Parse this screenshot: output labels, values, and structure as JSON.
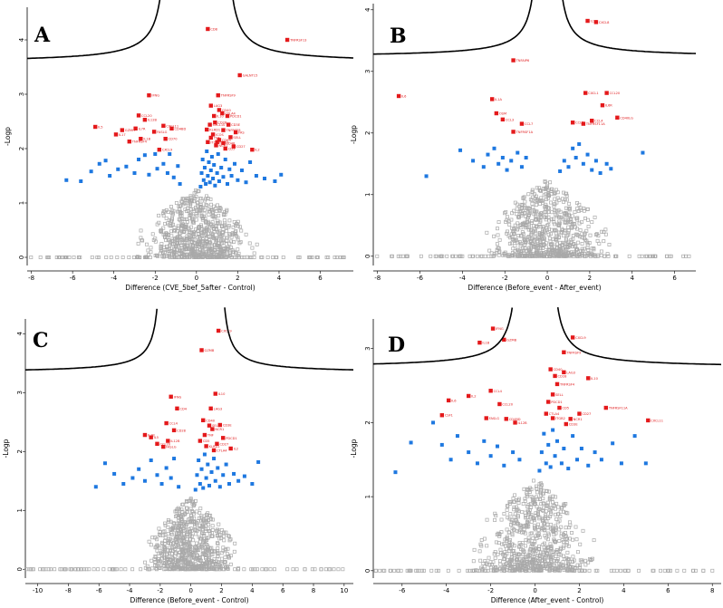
{
  "figure": {
    "colors": {
      "significant": "#e4191b",
      "trend": "#1e78e0",
      "nonsignificant": "#a9a9a9",
      "curve": "#000000"
    }
  },
  "chart_data": [
    {
      "panel": "A",
      "type": "scatter",
      "subtype": "volcano",
      "xlabel": "Difference (CVE_5bef_5after - Control)",
      "ylabel": "-Logp",
      "xlim": [
        -8.2,
        7.6
      ],
      "ylim": [
        -0.15,
        4.6
      ],
      "xticks": [
        -8,
        -6,
        -4,
        -2,
        0,
        2,
        4,
        6
      ],
      "yticks": [
        0,
        1,
        2,
        3,
        4
      ],
      "curve": {
        "c": 0.55,
        "k": 1.3,
        "yTop": 4.6
      },
      "background": {
        "n": 700,
        "seed": 11,
        "xSpread": 1.3,
        "ySpread": 0.55
      },
      "trend_points": [
        [
          -6.3,
          1.42
        ],
        [
          -5.6,
          1.4
        ],
        [
          -5.1,
          1.58
        ],
        [
          -4.7,
          1.72
        ],
        [
          -4.4,
          1.78
        ],
        [
          -4.2,
          1.5
        ],
        [
          -3.8,
          1.62
        ],
        [
          -3.4,
          1.67
        ],
        [
          -3.0,
          1.55
        ],
        [
          -2.8,
          1.8
        ],
        [
          -2.5,
          1.88
        ],
        [
          -2.3,
          1.52
        ],
        [
          -2.0,
          1.9
        ],
        [
          -1.9,
          1.63
        ],
        [
          -1.6,
          1.72
        ],
        [
          -1.4,
          1.55
        ],
        [
          -1.3,
          1.9
        ],
        [
          -1.1,
          1.47
        ],
        [
          -0.9,
          1.68
        ],
        [
          -0.8,
          1.35
        ],
        [
          0.2,
          1.3
        ],
        [
          0.25,
          1.55
        ],
        [
          0.3,
          1.8
        ],
        [
          0.35,
          1.42
        ],
        [
          0.4,
          1.65
        ],
        [
          0.45,
          1.35
        ],
        [
          0.5,
          1.95
        ],
        [
          0.55,
          1.5
        ],
        [
          0.6,
          1.75
        ],
        [
          0.65,
          1.38
        ],
        [
          0.7,
          1.6
        ],
        [
          0.75,
          1.85
        ],
        [
          0.8,
          1.45
        ],
        [
          0.85,
          1.7
        ],
        [
          0.9,
          1.32
        ],
        [
          1.0,
          1.55
        ],
        [
          1.05,
          1.9
        ],
        [
          1.1,
          1.4
        ],
        [
          1.2,
          1.65
        ],
        [
          1.3,
          1.48
        ],
        [
          1.4,
          1.8
        ],
        [
          1.5,
          1.35
        ],
        [
          1.6,
          1.62
        ],
        [
          1.7,
          1.5
        ],
        [
          1.85,
          1.72
        ],
        [
          2.0,
          1.42
        ],
        [
          2.2,
          1.6
        ],
        [
          2.4,
          1.38
        ],
        [
          2.6,
          1.75
        ],
        [
          2.9,
          1.5
        ],
        [
          3.3,
          1.45
        ],
        [
          3.8,
          1.4
        ],
        [
          4.1,
          1.52
        ]
      ],
      "significant_points": [
        [
          0.55,
          4.2,
          "CD8"
        ],
        [
          4.4,
          4.0,
          "TNFRSF13"
        ],
        [
          2.1,
          3.35,
          "GALNT15"
        ],
        [
          -2.3,
          2.98,
          "IFNG"
        ],
        [
          1.05,
          2.98,
          "TNFRSF9"
        ],
        [
          -2.8,
          2.61,
          "CCL20"
        ],
        [
          -2.5,
          2.53,
          "IL12B"
        ],
        [
          -4.9,
          2.4,
          "IL5"
        ],
        [
          -2.95,
          2.37,
          "IL7R"
        ],
        [
          -1.6,
          2.42,
          "CXCL11"
        ],
        [
          -1.2,
          2.37,
          "CD4BD"
        ],
        [
          -2.05,
          2.31,
          "FASLG"
        ],
        [
          -3.6,
          2.34,
          "GZMH"
        ],
        [
          -3.9,
          2.26,
          "IL17"
        ],
        [
          -2.7,
          2.18,
          "IL1B"
        ],
        [
          -3.25,
          2.13,
          "TNFRSF4"
        ],
        [
          -1.5,
          2.18,
          "CD70"
        ],
        [
          -1.8,
          1.98,
          "CXCL9"
        ],
        [
          0.7,
          2.79,
          "LAG3"
        ],
        [
          1.1,
          2.71,
          "CD40"
        ],
        [
          1.5,
          2.6,
          "PDCD1"
        ],
        [
          0.9,
          2.48,
          "CD28"
        ],
        [
          1.3,
          2.34,
          "TNFRSF8"
        ],
        [
          0.8,
          2.26,
          "ICOS"
        ],
        [
          1.65,
          2.21,
          "SELL"
        ],
        [
          0.55,
          2.12,
          "ITGB2"
        ],
        [
          1.8,
          2.04,
          "CD27"
        ],
        [
          2.7,
          1.98,
          "IL2"
        ],
        [
          1.4,
          2.0,
          "CD5"
        ],
        [
          0.95,
          2.06,
          "NCR1"
        ],
        [
          1.1,
          2.16,
          "CD69"
        ],
        [
          0.65,
          2.44,
          "CXCL10"
        ],
        [
          1.55,
          2.44,
          "CD3E"
        ],
        [
          0.7,
          2.2,
          "TNF"
        ],
        [
          1.9,
          2.3,
          "FAS"
        ],
        [
          0.85,
          2.6,
          "IL10"
        ],
        [
          1.25,
          2.65,
          "CTLA4"
        ],
        [
          0.5,
          2.35,
          "KLRD1"
        ],
        [
          1.0,
          2.12,
          "CD83"
        ],
        [
          1.3,
          2.1,
          "CD48"
        ]
      ]
    },
    {
      "panel": "B",
      "type": "scatter",
      "subtype": "volcano",
      "xlabel": "Difference (Before_event - After_event)",
      "ylabel": "-Logp",
      "xlim": [
        -8.2,
        7.0
      ],
      "ylim": [
        -0.15,
        4.1
      ],
      "xticks": [
        -8,
        -6,
        -4,
        -2,
        0,
        2,
        4,
        6
      ],
      "yticks": [
        0,
        1,
        2,
        3,
        4
      ],
      "curve": {
        "c": 0.4,
        "k": 0.3,
        "yTop": 4.1
      },
      "background": {
        "n": 700,
        "seed": 23,
        "xSpread": 1.4,
        "ySpread": 0.5
      },
      "trend_points": [
        [
          -4.1,
          1.72
        ],
        [
          -3.5,
          1.55
        ],
        [
          -3.0,
          1.45
        ],
        [
          -2.8,
          1.65
        ],
        [
          -2.5,
          1.75
        ],
        [
          -2.3,
          1.5
        ],
        [
          -2.1,
          1.6
        ],
        [
          -1.9,
          1.4
        ],
        [
          -1.7,
          1.55
        ],
        [
          -1.4,
          1.68
        ],
        [
          -1.2,
          1.45
        ],
        [
          -1.0,
          1.6
        ],
        [
          -5.7,
          1.3
        ],
        [
          0.6,
          1.38
        ],
        [
          0.8,
          1.55
        ],
        [
          1.0,
          1.45
        ],
        [
          1.2,
          1.75
        ],
        [
          1.35,
          1.6
        ],
        [
          1.5,
          1.82
        ],
        [
          1.7,
          1.5
        ],
        [
          1.9,
          1.65
        ],
        [
          2.1,
          1.4
        ],
        [
          2.3,
          1.55
        ],
        [
          2.5,
          1.35
        ],
        [
          2.8,
          1.5
        ],
        [
          3.0,
          1.42
        ],
        [
          4.5,
          1.68
        ]
      ],
      "significant_points": [
        [
          1.9,
          3.82,
          "IL1B"
        ],
        [
          2.3,
          3.8,
          "CXCL8"
        ],
        [
          -1.6,
          3.18,
          "TNFAIP6"
        ],
        [
          -7.0,
          2.6,
          "IL6"
        ],
        [
          -2.6,
          2.55,
          "IL1A"
        ],
        [
          -2.4,
          2.32,
          "OSM"
        ],
        [
          -2.1,
          2.22,
          "CCL3"
        ],
        [
          -1.2,
          2.15,
          "CCL7"
        ],
        [
          -1.6,
          2.02,
          "TNFRSF1A"
        ],
        [
          1.8,
          2.65,
          "CXCL1"
        ],
        [
          2.8,
          2.65,
          "CCL20"
        ],
        [
          2.6,
          2.45,
          "IL6R"
        ],
        [
          2.1,
          2.2,
          "CCL4"
        ],
        [
          1.7,
          2.15,
          "TNFRSF11A"
        ],
        [
          3.3,
          2.25,
          "CD40LG"
        ],
        [
          1.2,
          2.17,
          "CCL2"
        ]
      ]
    },
    {
      "panel": "C",
      "type": "scatter",
      "subtype": "volcano",
      "xlabel": "Difference (Before_event - Control)",
      "ylabel": "-Logp",
      "xlim": [
        -10.8,
        10.6
      ],
      "ylim": [
        -0.15,
        4.25
      ],
      "xticks": [
        -10,
        -8,
        -6,
        -4,
        -2,
        0,
        2,
        4,
        6,
        8,
        10
      ],
      "yticks": [
        0,
        1,
        2,
        3,
        4
      ],
      "curve": {
        "c": 0.45,
        "k": 1.8,
        "yTop": 4.25
      },
      "background": {
        "n": 700,
        "seed": 37,
        "xSpread": 1.5,
        "ySpread": 0.55
      },
      "trend_points": [
        [
          -5.6,
          1.8
        ],
        [
          -5.0,
          1.62
        ],
        [
          -4.4,
          1.45
        ],
        [
          -3.8,
          1.55
        ],
        [
          -3.4,
          1.7
        ],
        [
          -3.0,
          1.5
        ],
        [
          -2.6,
          1.85
        ],
        [
          -2.2,
          1.6
        ],
        [
          -1.9,
          1.45
        ],
        [
          -1.6,
          1.72
        ],
        [
          -1.3,
          1.55
        ],
        [
          -1.1,
          1.88
        ],
        [
          -0.8,
          1.4
        ],
        [
          -6.2,
          1.4
        ],
        [
          0.3,
          1.35
        ],
        [
          0.4,
          1.6
        ],
        [
          0.5,
          1.85
        ],
        [
          0.6,
          1.45
        ],
        [
          0.7,
          1.7
        ],
        [
          0.8,
          1.38
        ],
        [
          0.9,
          1.95
        ],
        [
          1.0,
          1.55
        ],
        [
          1.1,
          1.78
        ],
        [
          1.2,
          1.42
        ],
        [
          1.35,
          1.65
        ],
        [
          1.5,
          1.88
        ],
        [
          1.6,
          1.5
        ],
        [
          1.75,
          1.72
        ],
        [
          1.9,
          1.4
        ],
        [
          2.1,
          1.6
        ],
        [
          2.3,
          1.78
        ],
        [
          2.5,
          1.45
        ],
        [
          2.8,
          1.62
        ],
        [
          3.1,
          1.5
        ],
        [
          3.5,
          1.58
        ],
        [
          4.0,
          1.45
        ],
        [
          4.4,
          1.82
        ]
      ],
      "significant_points": [
        [
          1.8,
          4.05,
          "CXCL9"
        ],
        [
          0.7,
          3.72,
          "GZMB"
        ],
        [
          -1.3,
          2.93,
          "IFNG"
        ],
        [
          1.6,
          2.98,
          "IL10"
        ],
        [
          -0.9,
          2.73,
          "CD4"
        ],
        [
          1.3,
          2.73,
          "LAG3"
        ],
        [
          -1.6,
          2.48,
          "CCL4"
        ],
        [
          -1.1,
          2.36,
          "CD28"
        ],
        [
          -3.0,
          2.28,
          "IL1B"
        ],
        [
          -2.6,
          2.24,
          "IL5"
        ],
        [
          -1.5,
          2.18,
          "IL12B"
        ],
        [
          -2.2,
          2.13,
          "CCL20"
        ],
        [
          -1.8,
          2.08,
          "FASLG"
        ],
        [
          0.8,
          2.53,
          "CD40"
        ],
        [
          1.2,
          2.44,
          "SELL"
        ],
        [
          0.9,
          2.28,
          "TNF"
        ],
        [
          2.1,
          2.23,
          "PDCD1"
        ],
        [
          1.7,
          2.13,
          "CD27"
        ],
        [
          2.6,
          2.05,
          "IL2"
        ],
        [
          1.4,
          2.38,
          "NCR1"
        ],
        [
          0.6,
          2.18,
          "CD5"
        ],
        [
          1.9,
          2.45,
          "CD3E"
        ],
        [
          1.0,
          2.09,
          "KLRD1"
        ],
        [
          1.5,
          2.02,
          "CTLA4"
        ]
      ]
    },
    {
      "panel": "D",
      "type": "scatter",
      "subtype": "volcano",
      "xlabel": "Difference (After_event - Control)",
      "ylabel": "-Logp",
      "xlim": [
        -7.3,
        8.4
      ],
      "ylim": [
        -0.1,
        3.4
      ],
      "xticks": [
        -6,
        -4,
        -2,
        0,
        2,
        4,
        6,
        8
      ],
      "yticks": [
        0,
        1,
        2,
        3
      ],
      "curve": {
        "c": 0.35,
        "k": 0.6,
        "yTop": 3.4
      },
      "background": {
        "n": 700,
        "seed": 53,
        "xSpread": 1.3,
        "ySpread": 0.45
      },
      "trend_points": [
        [
          -6.3,
          1.33
        ],
        [
          -5.6,
          1.73
        ],
        [
          -4.6,
          2.0
        ],
        [
          -4.2,
          1.7
        ],
        [
          -3.8,
          1.5
        ],
        [
          -3.5,
          1.82
        ],
        [
          -3.0,
          1.6
        ],
        [
          -2.6,
          1.45
        ],
        [
          -2.3,
          1.75
        ],
        [
          -2.0,
          1.55
        ],
        [
          -1.7,
          1.68
        ],
        [
          -1.4,
          1.42
        ],
        [
          -1.0,
          1.6
        ],
        [
          -0.7,
          1.5
        ],
        [
          0.2,
          1.35
        ],
        [
          0.3,
          1.6
        ],
        [
          0.4,
          1.85
        ],
        [
          0.5,
          1.45
        ],
        [
          0.6,
          1.7
        ],
        [
          0.7,
          1.4
        ],
        [
          0.8,
          1.9
        ],
        [
          0.9,
          1.55
        ],
        [
          1.0,
          1.75
        ],
        [
          1.2,
          1.45
        ],
        [
          1.3,
          1.65
        ],
        [
          1.5,
          1.38
        ],
        [
          1.7,
          1.82
        ],
        [
          1.9,
          1.5
        ],
        [
          2.1,
          1.65
        ],
        [
          2.4,
          1.42
        ],
        [
          2.7,
          1.6
        ],
        [
          3.0,
          1.5
        ],
        [
          3.5,
          1.72
        ],
        [
          3.9,
          1.45
        ],
        [
          4.5,
          1.82
        ],
        [
          5.0,
          1.45
        ]
      ],
      "significant_points": [
        [
          -1.9,
          3.27,
          "IFNG"
        ],
        [
          1.7,
          3.15,
          "CXCL9"
        ],
        [
          -2.5,
          3.08,
          "IL1B"
        ],
        [
          -1.4,
          3.12,
          "GZMB"
        ],
        [
          1.3,
          2.95,
          "TNFRSF9"
        ],
        [
          0.7,
          2.72,
          "CD40"
        ],
        [
          1.3,
          2.68,
          "LAG3"
        ],
        [
          2.4,
          2.6,
          "IL10"
        ],
        [
          0.9,
          2.63,
          "CD28"
        ],
        [
          1.0,
          2.52,
          "TNFRSF4"
        ],
        [
          0.8,
          2.38,
          "SELL"
        ],
        [
          -2.0,
          2.43,
          "CCL4"
        ],
        [
          -3.0,
          2.36,
          "IL2"
        ],
        [
          -3.9,
          2.3,
          "IL6"
        ],
        [
          -1.6,
          2.25,
          "CCL20"
        ],
        [
          -4.2,
          2.1,
          "CSF1"
        ],
        [
          -2.2,
          2.06,
          "FASLG"
        ],
        [
          -1.3,
          2.05,
          "CD4BD"
        ],
        [
          -0.9,
          2.0,
          "IL12B"
        ],
        [
          0.6,
          2.28,
          "PDCD1"
        ],
        [
          1.1,
          2.2,
          "CD5"
        ],
        [
          1.6,
          2.05,
          "NCR1"
        ],
        [
          2.0,
          2.12,
          "CD27"
        ],
        [
          3.2,
          2.2,
          "TNFRSF11A"
        ],
        [
          5.1,
          2.03,
          "CXCL11"
        ],
        [
          0.8,
          2.06,
          "ITGB2"
        ],
        [
          1.4,
          1.98,
          "CD3E"
        ],
        [
          0.5,
          2.12,
          "CTLA4"
        ]
      ]
    }
  ]
}
